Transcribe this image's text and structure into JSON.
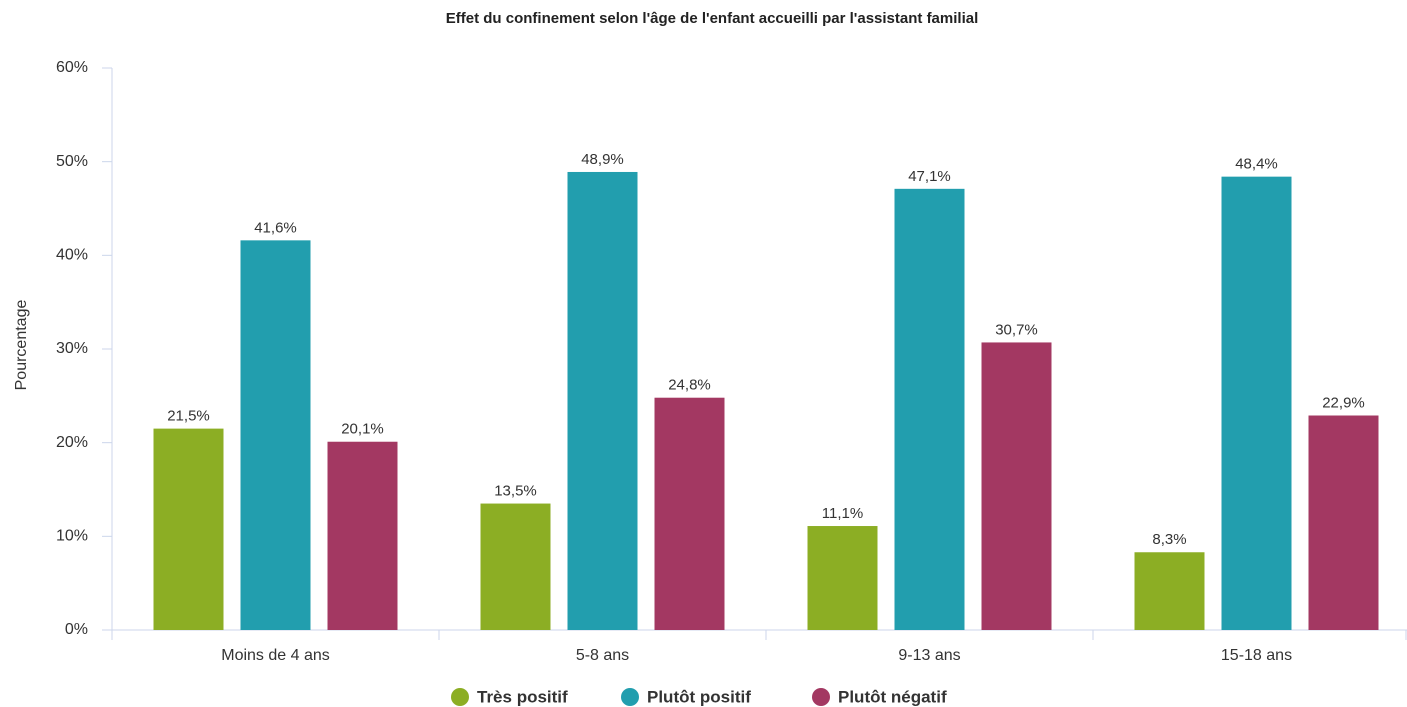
{
  "chart_data": {
    "type": "bar",
    "title": "Effet du confinement selon l'âge de l'enfant accueilli par l'assistant familial",
    "y_label": "Pourcentage",
    "categories": [
      "Moins de 4 ans",
      "5-8 ans",
      "9-13 ans",
      "15-18 ans"
    ],
    "series": [
      {
        "name": "Très positif",
        "color": "#8cae24",
        "values": [
          21.5,
          13.5,
          11.1,
          8.3
        ],
        "value_labels": [
          "21,5%",
          "13,5%",
          "11,1%",
          "8,3%"
        ]
      },
      {
        "name": "Plutôt positif",
        "color": "#229eae",
        "values": [
          41.6,
          48.9,
          47.1,
          48.4
        ],
        "value_labels": [
          "41,6%",
          "48,9%",
          "47,1%",
          "48,4%"
        ]
      },
      {
        "name": "Plutôt négatif",
        "color": "#a33862",
        "values": [
          20.1,
          24.8,
          30.7,
          22.9
        ],
        "value_labels": [
          "20,1%",
          "24,8%",
          "30,7%",
          "22,9%"
        ]
      }
    ],
    "ylim": [
      0,
      60
    ],
    "yticks": [
      {
        "value": 0,
        "label": "0%"
      },
      {
        "value": 10,
        "label": "10%"
      },
      {
        "value": 20,
        "label": "20%"
      },
      {
        "value": 30,
        "label": "30%"
      },
      {
        "value": 40,
        "label": "40%"
      },
      {
        "value": 50,
        "label": "50%"
      },
      {
        "value": 60,
        "label": "60%"
      }
    ],
    "legend": "bottom"
  }
}
